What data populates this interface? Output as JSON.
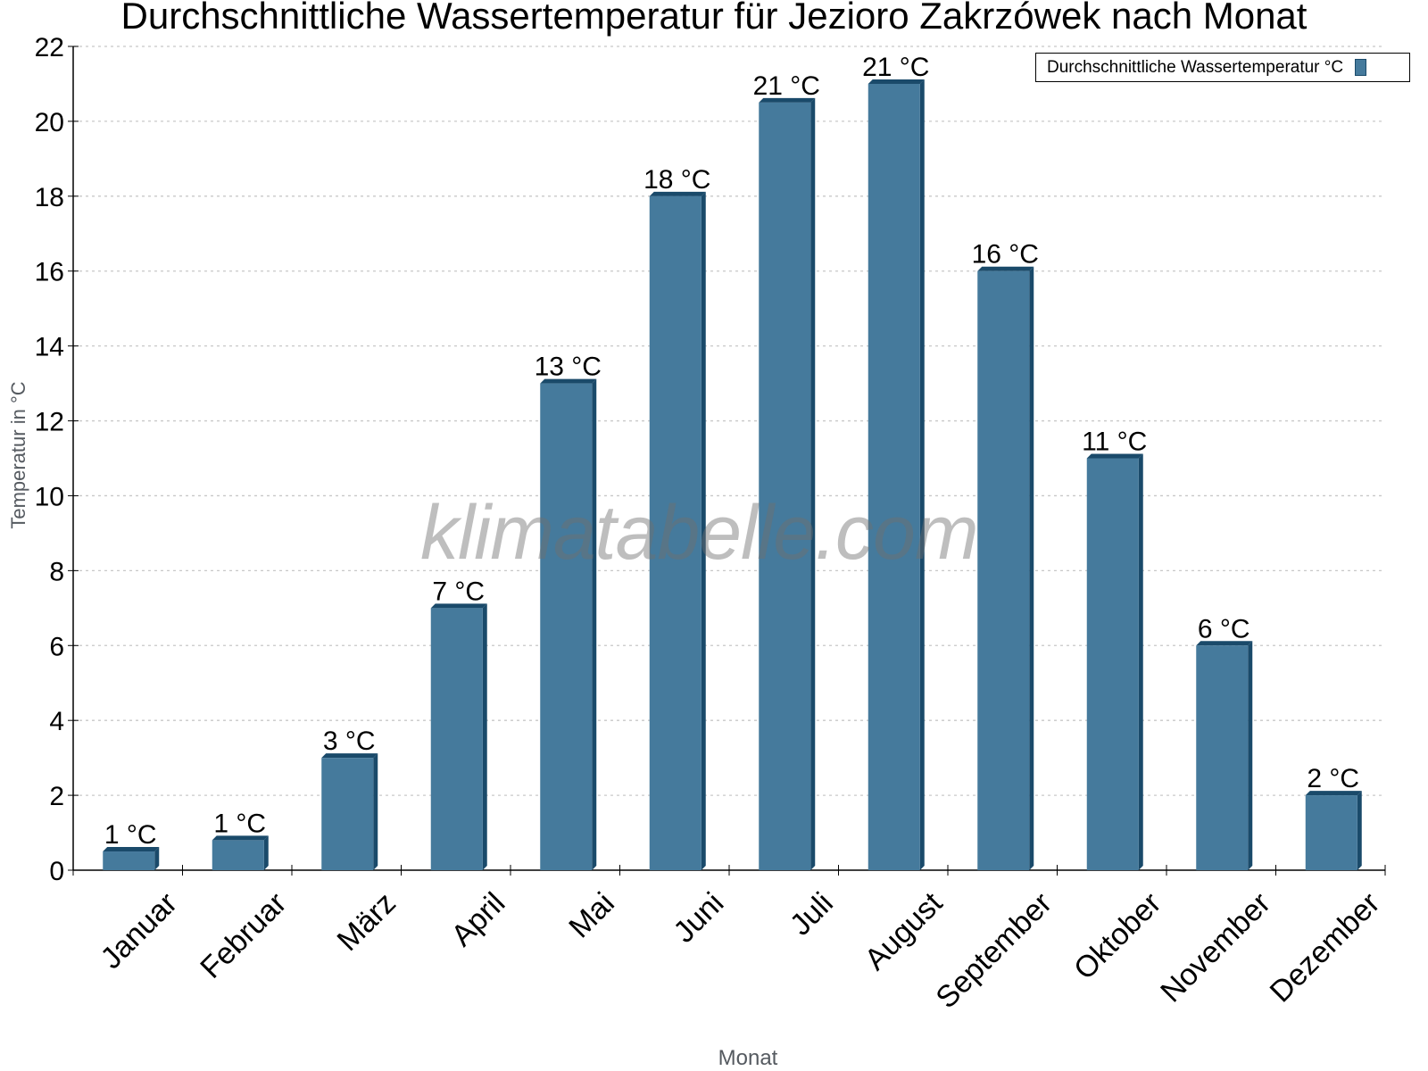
{
  "title": "Durchschnittliche Wassertemperatur für Jezioro Zakrzówek nach Monat",
  "legend": {
    "label": "Durchschnittliche Wassertemperatur °C",
    "color": "#457a9c"
  },
  "axes": {
    "ylabel": "Temperatur in °C",
    "xlabel": "Monat"
  },
  "watermark": "klimatabelle.com",
  "colors": {
    "bar_front": "#457a9c",
    "bar_side": "#1a4a6a",
    "bar_top": "#1a4a6a",
    "grid": "#c8c8c8"
  },
  "chart_data": {
    "type": "bar",
    "title": "Durchschnittliche Wassertemperatur für Jezioro Zakrzówek nach Monat",
    "xlabel": "Monat",
    "ylabel": "Temperatur in °C",
    "ylim": [
      0,
      22
    ],
    "yticks": [
      0,
      2,
      4,
      6,
      8,
      10,
      12,
      14,
      16,
      18,
      20,
      22
    ],
    "grid": true,
    "legend_position": "top-right",
    "categories": [
      "Januar",
      "Februar",
      "März",
      "April",
      "Mai",
      "Juni",
      "Juli",
      "August",
      "September",
      "Oktober",
      "November",
      "Dezember"
    ],
    "series": [
      {
        "name": "Durchschnittliche Wassertemperatur °C",
        "values": [
          0.5,
          0.8,
          3,
          7,
          13,
          18,
          20.5,
          21,
          16,
          11,
          6,
          2
        ],
        "labels": [
          "1 °C",
          "1 °C",
          "3 °C",
          "7 °C",
          "13 °C",
          "18 °C",
          "21 °C",
          "21 °C",
          "16 °C",
          "11 °C",
          "6 °C",
          "2 °C"
        ]
      }
    ]
  }
}
